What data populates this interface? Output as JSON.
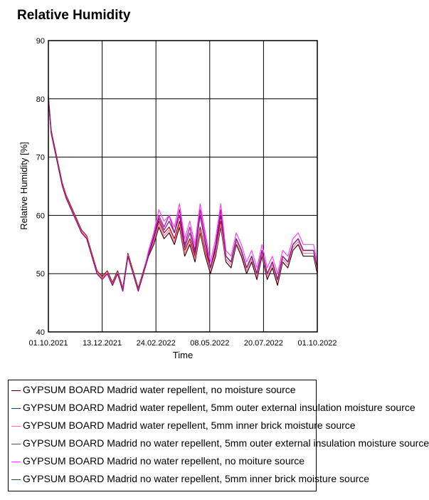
{
  "chart_data": {
    "type": "line",
    "title": "Relative Humidity",
    "xlabel": "Time",
    "ylabel": "Relative Humidity [%]",
    "ylim": [
      40,
      90
    ],
    "yticks": [
      40,
      50,
      60,
      70,
      80,
      90
    ],
    "xlim": [
      "2021-10-01",
      "2022-10-01"
    ],
    "xticks": [
      "01.10.2021",
      "13.12.2021",
      "24.02.2022",
      "08.05.2022",
      "20.07.2022",
      "01.10.2022"
    ],
    "grid": true,
    "legend_position": "bottom",
    "x_dates": [
      "2021-10-01",
      "2021-10-05",
      "2021-10-10",
      "2021-10-15",
      "2021-10-20",
      "2021-10-25",
      "2021-11-01",
      "2021-11-08",
      "2021-11-15",
      "2021-11-22",
      "2021-11-29",
      "2021-12-06",
      "2021-12-13",
      "2021-12-20",
      "2021-12-27",
      "2022-01-03",
      "2022-01-10",
      "2022-01-17",
      "2022-01-24",
      "2022-01-31",
      "2022-02-07",
      "2022-02-14",
      "2022-02-21",
      "2022-02-28",
      "2022-03-07",
      "2022-03-14",
      "2022-03-21",
      "2022-03-28",
      "2022-04-04",
      "2022-04-11",
      "2022-04-18",
      "2022-04-25",
      "2022-05-02",
      "2022-05-09",
      "2022-05-16",
      "2022-05-23",
      "2022-05-30",
      "2022-06-06",
      "2022-06-13",
      "2022-06-20",
      "2022-06-27",
      "2022-07-04",
      "2022-07-11",
      "2022-07-18",
      "2022-07-25",
      "2022-08-01",
      "2022-08-08",
      "2022-08-15",
      "2022-08-22",
      "2022-08-29",
      "2022-09-05",
      "2022-09-12",
      "2022-09-19",
      "2022-09-26",
      "2022-10-01"
    ],
    "series": [
      {
        "name": "GYPSUM BOARD Madrid water repellent, no moisture source",
        "color": "#3c0000",
        "values": [
          80,
          74,
          71,
          68,
          65,
          63,
          61,
          59,
          57,
          56,
          53,
          50,
          49,
          50,
          48,
          50,
          47,
          53,
          50,
          47,
          50,
          53,
          55,
          58,
          56,
          57,
          55,
          58,
          53,
          55,
          52,
          57,
          53,
          50,
          53,
          58,
          52,
          51,
          55,
          53,
          50,
          52,
          49,
          53,
          49,
          51,
          48,
          52,
          51,
          54,
          55,
          53,
          53,
          53,
          50
        ]
      },
      {
        "name": "GYPSUM BOARD Madrid water repellent, 5mm outer external insulation moisture source",
        "color": "#b40000",
        "values": [
          80.5,
          74.5,
          71.5,
          68.5,
          65.5,
          63.5,
          61.5,
          59.5,
          57.5,
          56.5,
          53.5,
          50.5,
          49.5,
          50.5,
          48.5,
          50.5,
          47.5,
          53.5,
          50.5,
          47.5,
          50.5,
          53.5,
          56,
          59,
          57,
          58,
          56,
          59,
          54,
          56,
          53,
          58,
          54,
          51,
          54,
          59,
          53,
          52,
          56,
          54,
          51,
          53,
          50,
          54,
          50,
          52,
          49,
          53,
          52,
          55,
          56,
          54,
          54,
          54,
          51
        ]
      },
      {
        "name": "GYPSUM BOARD Madrid water repellent, 5mm inner brick moisture source",
        "color": "#e080a0",
        "values": [
          80.2,
          74.2,
          71.2,
          68.2,
          65.2,
          63.2,
          61.2,
          59.2,
          57.2,
          56.2,
          53.2,
          50.2,
          49.2,
          50.2,
          48.2,
          50.2,
          47.2,
          53.2,
          50.2,
          47.2,
          50.2,
          53.2,
          55.5,
          58.5,
          56.5,
          57.5,
          55.5,
          58.5,
          53.5,
          55.5,
          52.5,
          57.5,
          53.5,
          50.5,
          53.5,
          58.5,
          52.5,
          51.5,
          55.5,
          53.5,
          50.5,
          52.5,
          49.5,
          53.5,
          49.5,
          51.5,
          48.5,
          52.5,
          51.5,
          54.5,
          55.5,
          53.5,
          53.5,
          53.5,
          50.5
        ]
      },
      {
        "name": "GYPSUM BOARD Madrid no water repellent, 5mm outer external insulation moisture source",
        "color": "#c000a0",
        "values": [
          80,
          74,
          71,
          68,
          65,
          63,
          61,
          59,
          57,
          56,
          53,
          50,
          49,
          50,
          48,
          50,
          47,
          53,
          50,
          47,
          50,
          53.5,
          56.5,
          60,
          58,
          60,
          57,
          61,
          55,
          58,
          54,
          61,
          56,
          51,
          55,
          61,
          53,
          52,
          56,
          54,
          51,
          53,
          50,
          54,
          50,
          52,
          49,
          53,
          52,
          55,
          56,
          54,
          54,
          54,
          51
        ]
      },
      {
        "name": "GYPSUM BOARD Madrid no water repellent, no moiture  source",
        "color": "#ff40ff",
        "values": [
          80,
          74,
          71,
          68,
          65,
          63,
          61,
          59,
          57,
          56,
          53,
          50,
          49,
          50,
          48,
          50,
          47,
          53,
          50,
          47,
          50,
          54,
          57,
          61,
          59,
          60,
          58,
          62,
          56,
          59,
          55,
          62,
          57,
          52,
          56,
          62,
          54,
          53,
          57,
          55,
          52,
          54,
          51,
          55,
          51,
          53,
          50,
          54,
          53,
          56,
          57,
          55,
          55,
          55,
          52
        ]
      },
      {
        "name": "GYPSUM BOARD Madrid no water repellent, 5mm inner brick moisture source",
        "color": "#7a1a7a",
        "values": [
          80,
          74,
          71,
          68,
          65,
          63,
          61,
          59,
          57,
          56,
          53,
          50,
          49,
          50,
          48,
          50,
          47,
          53,
          50,
          47,
          50,
          53.2,
          56,
          59.5,
          57.5,
          59,
          57,
          60,
          54.5,
          57,
          53.5,
          60,
          55,
          51,
          54.5,
          60,
          53,
          52,
          56,
          54,
          51,
          53,
          50,
          54,
          50,
          52,
          49,
          53,
          52,
          55,
          56,
          54,
          54,
          54,
          51
        ]
      }
    ]
  }
}
